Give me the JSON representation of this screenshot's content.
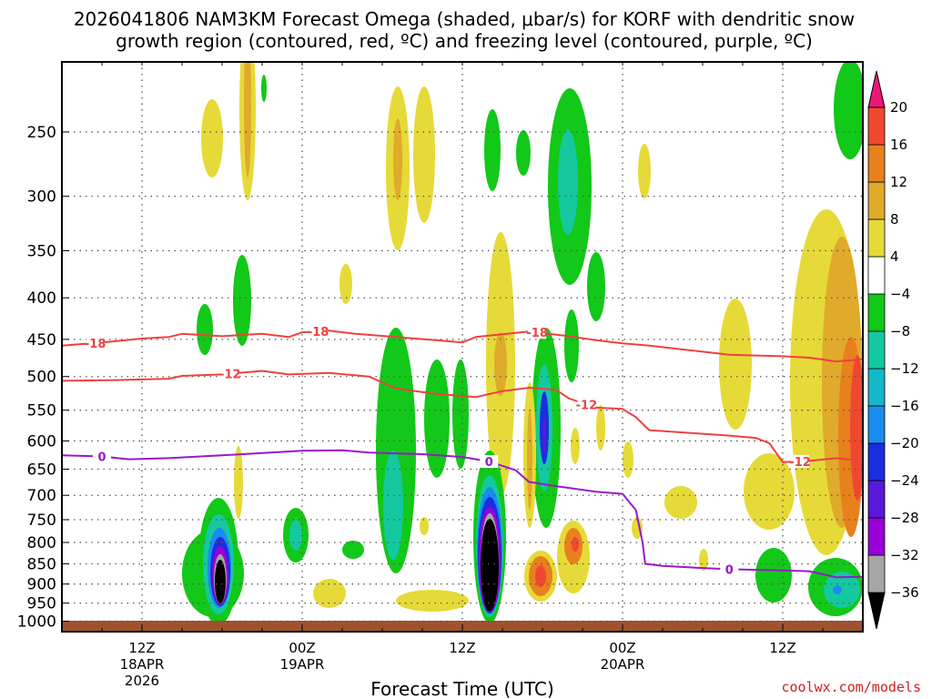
{
  "chart_data": {
    "type": "heatmap",
    "title_line1": "2026041806 NAM3KM Forecast Omega (shaded, μbar/s) for KORF with dendritic snow",
    "title_line2": "growth region (contoured, red, ºC) and freezing level (contoured, purple, ºC)",
    "xlabel": "Forecast Time (UTC)",
    "credit": "coolwx.com/models",
    "y_axis": {
      "units": "hPa",
      "ylim": [
        1030,
        205
      ],
      "ticks": [
        250,
        300,
        350,
        400,
        450,
        500,
        550,
        600,
        650,
        700,
        750,
        800,
        850,
        900,
        950,
        1000
      ]
    },
    "x_axis": {
      "units": "hours since 2026-04-18 06Z",
      "xlim": [
        0,
        60
      ],
      "ticks": [
        {
          "hour": 6,
          "line1": "12Z",
          "line2": "18APR",
          "line3": "2026"
        },
        {
          "hour": 18,
          "line1": "00Z",
          "line2": "19APR",
          "line3": ""
        },
        {
          "hour": 30,
          "line1": "12Z",
          "line2": "",
          "line3": ""
        },
        {
          "hour": 42,
          "line1": "00Z",
          "line2": "20APR",
          "line3": ""
        },
        {
          "hour": 54,
          "line1": "12Z",
          "line2": "",
          "line3": ""
        }
      ]
    },
    "colorbar": {
      "levels": [
        -36,
        -32,
        -28,
        -24,
        -20,
        -16,
        -12,
        -8,
        -4,
        4,
        8,
        12,
        16,
        20
      ],
      "colors": [
        "#000000",
        "#a6a6a6",
        "#9a00d8",
        "#5a18d8",
        "#1a2ee0",
        "#1a8cf0",
        "#12b8c8",
        "#14c8a0",
        "#12c818",
        "#ffffff",
        "#e6da38",
        "#e0aa2a",
        "#e8801e",
        "#f04830",
        "#e81878"
      ]
    },
    "contours": [
      {
        "label": "-18",
        "color": "#f04040",
        "label_hours": [
          2.5,
          19.2,
          35.6
        ],
        "points": [
          [
            0,
            458
          ],
          [
            3,
            454
          ],
          [
            6,
            449
          ],
          [
            8,
            447
          ],
          [
            9,
            443
          ],
          [
            12,
            446
          ],
          [
            15,
            443
          ],
          [
            17,
            447
          ],
          [
            18,
            441
          ],
          [
            20,
            439
          ],
          [
            22,
            443
          ],
          [
            25,
            447
          ],
          [
            28,
            451
          ],
          [
            30,
            454
          ],
          [
            31,
            447
          ],
          [
            35,
            440
          ],
          [
            38,
            446
          ],
          [
            40,
            451
          ],
          [
            42,
            455
          ],
          [
            44,
            458
          ],
          [
            46,
            462
          ],
          [
            48,
            466
          ],
          [
            50,
            470
          ],
          [
            52,
            471
          ],
          [
            54,
            472
          ],
          [
            56,
            474
          ],
          [
            58,
            479
          ],
          [
            60,
            476
          ]
        ]
      },
      {
        "label": "-12",
        "color": "#f04040",
        "label_hours": [
          12.6,
          39.3,
          55.3
        ],
        "points": [
          [
            0,
            506
          ],
          [
            4,
            505
          ],
          [
            8,
            503
          ],
          [
            9,
            499
          ],
          [
            12,
            497
          ],
          [
            15,
            492
          ],
          [
            17,
            497
          ],
          [
            20,
            495
          ],
          [
            23,
            500
          ],
          [
            25,
            517
          ],
          [
            28,
            525
          ],
          [
            31,
            530
          ],
          [
            33,
            521
          ],
          [
            35,
            516
          ],
          [
            37,
            519
          ],
          [
            38,
            532
          ],
          [
            40,
            546
          ],
          [
            42,
            548
          ],
          [
            43,
            561
          ],
          [
            44,
            582
          ],
          [
            46,
            585
          ],
          [
            48,
            588
          ],
          [
            50,
            591
          ],
          [
            52,
            595
          ],
          [
            53,
            604
          ],
          [
            54,
            637
          ],
          [
            56,
            635
          ],
          [
            58,
            630
          ],
          [
            60,
            635
          ]
        ]
      },
      {
        "label": "0",
        "color": "#9a18c8",
        "label_hours": [
          3.0,
          32.0,
          50.0
        ],
        "points": [
          [
            0,
            625
          ],
          [
            3,
            627
          ],
          [
            5,
            632
          ],
          [
            8,
            630
          ],
          [
            12,
            625
          ],
          [
            15,
            621
          ],
          [
            18,
            617
          ],
          [
            21,
            616
          ],
          [
            23,
            620
          ],
          [
            27,
            623
          ],
          [
            30,
            628
          ],
          [
            32,
            636
          ],
          [
            34,
            652
          ],
          [
            35,
            674
          ],
          [
            37,
            682
          ],
          [
            40,
            693
          ],
          [
            42,
            697
          ],
          [
            43,
            730
          ],
          [
            43.5,
            800
          ],
          [
            43.7,
            850
          ],
          [
            45,
            855
          ],
          [
            48,
            860
          ],
          [
            50,
            863
          ],
          [
            54,
            866
          ],
          [
            56,
            868
          ],
          [
            58,
            883
          ],
          [
            60,
            882
          ]
        ]
      }
    ]
  }
}
